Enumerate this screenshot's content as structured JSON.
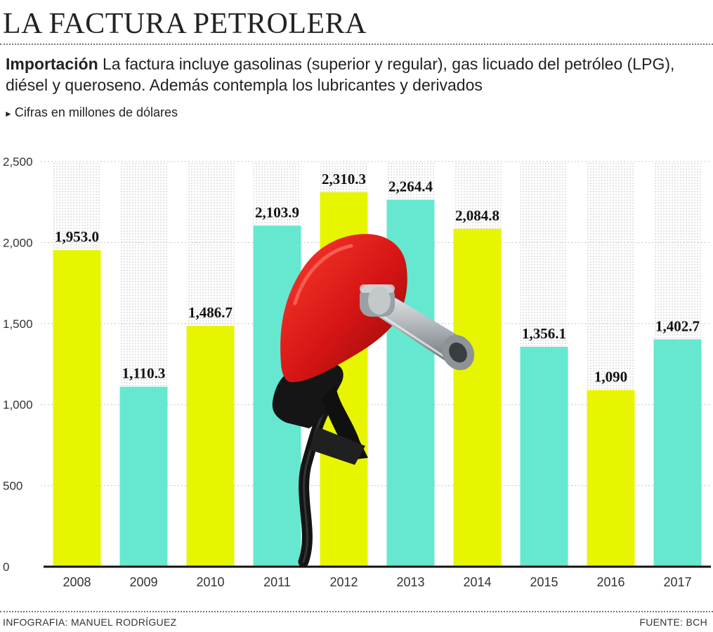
{
  "header": {
    "title": "LA FACTURA PETROLERA",
    "intro_bold": "Importación",
    "intro_text": " La factura  incluye gasolinas (superior y regular), gas licuado del petróleo (LPG), diésel y queroseno. Además contempla  los lubricantes y derivados",
    "units": "Cifras en millones de dólares"
  },
  "footer": {
    "credit": "INFOGRAFIA: MANUEL RODRÍGUEZ",
    "source": "FUENTE: BCH"
  },
  "colors": {
    "yellow": "#e8f500",
    "teal": "#66e8d0",
    "axis": "#111111",
    "pump_red": "#d41414",
    "nozzle_steel": "#a9aeb2"
  },
  "icons": [
    "fuel-pump-nozzle-icon"
  ],
  "chart_data": {
    "type": "bar",
    "categories": [
      "2008",
      "2009",
      "2010",
      "2011",
      "2012",
      "2013",
      "2014",
      "2015",
      "2016",
      "2017"
    ],
    "values": [
      1953.0,
      1110.3,
      1486.7,
      2103.9,
      2310.3,
      2264.4,
      2084.8,
      1356.1,
      1090,
      1402.7
    ],
    "data_labels": [
      "1,953.0",
      "1,110.3",
      "1,486.7",
      "2,103.9",
      "2,310.3",
      "2,264.4",
      "2,084.8",
      "1,356.1",
      "1,090",
      "1,402.7"
    ],
    "bar_colors": [
      "yellow",
      "teal",
      "yellow",
      "teal",
      "yellow",
      "teal",
      "yellow",
      "teal",
      "yellow",
      "teal"
    ],
    "yticks": [
      0,
      500,
      1000,
      1500,
      2000,
      2500
    ],
    "ytick_labels": [
      "0",
      "500",
      "1,000",
      "1,500",
      "2,000",
      "2,500"
    ],
    "ylim": [
      0,
      2500
    ],
    "grid": true,
    "legend": "none"
  }
}
